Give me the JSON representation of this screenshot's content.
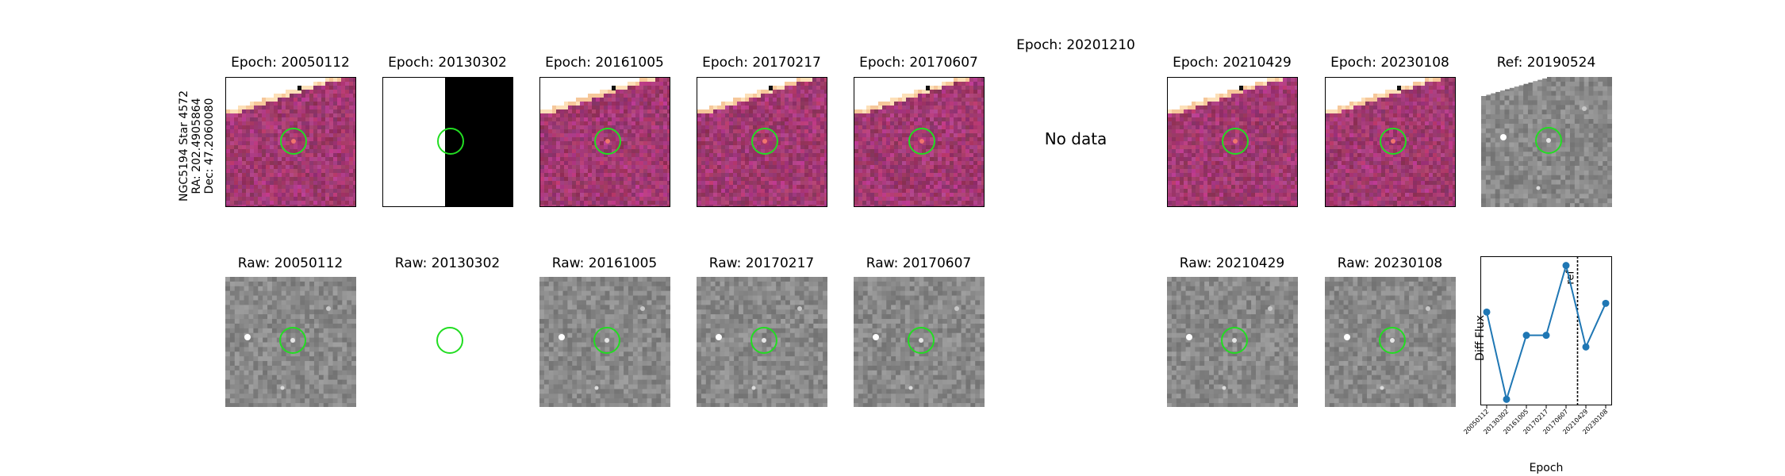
{
  "star_label": {
    "line1": "NGC5194 Star 4572",
    "line2": "RA: 202.4905864",
    "line3": "Dec: 47.2060080"
  },
  "top_row": [
    {
      "title": "Epoch: 20050112",
      "kind": "diff"
    },
    {
      "title": "Epoch: 20130302",
      "kind": "split"
    },
    {
      "title": "Epoch: 20161005",
      "kind": "diff"
    },
    {
      "title": "Epoch: 20170217",
      "kind": "diff"
    },
    {
      "title": "Epoch: 20170607",
      "kind": "diff"
    },
    {
      "title": "Epoch: 20201210",
      "kind": "none",
      "message": "No data"
    },
    {
      "title": "Epoch: 20210429",
      "kind": "diff"
    },
    {
      "title": "Epoch: 20230108",
      "kind": "diff"
    },
    {
      "title": "Ref: 20190524",
      "kind": "ref"
    }
  ],
  "bottom_row": [
    {
      "title": "Raw: 20050112",
      "kind": "raw"
    },
    {
      "title": "Raw: 20130302",
      "kind": "empty"
    },
    {
      "title": "Raw: 20161005",
      "kind": "raw"
    },
    {
      "title": "Raw: 20170217",
      "kind": "raw"
    },
    {
      "title": "Raw: 20170607",
      "kind": "raw"
    },
    {
      "title": "Raw: 20210429",
      "kind": "raw"
    },
    {
      "title": "Raw: 20230108",
      "kind": "raw"
    }
  ],
  "colors": {
    "circle": "#22dd22",
    "line": "#1f77b4",
    "diff_base": "#9c3e7c"
  },
  "chart_data": {
    "type": "line",
    "xlabel": "Epoch",
    "ylabel": "Diff Flux",
    "categories": [
      "20050112",
      "20130302",
      "20161005",
      "20170217",
      "20170607",
      "20210429",
      "20230108"
    ],
    "values": [
      0.5,
      -1.0,
      0.1,
      0.1,
      1.3,
      -0.1,
      0.65
    ],
    "ylim": [
      -1.05,
      1.35
    ],
    "reference_line": {
      "label": "ref",
      "between": [
        "20170607",
        "20210429"
      ]
    }
  }
}
